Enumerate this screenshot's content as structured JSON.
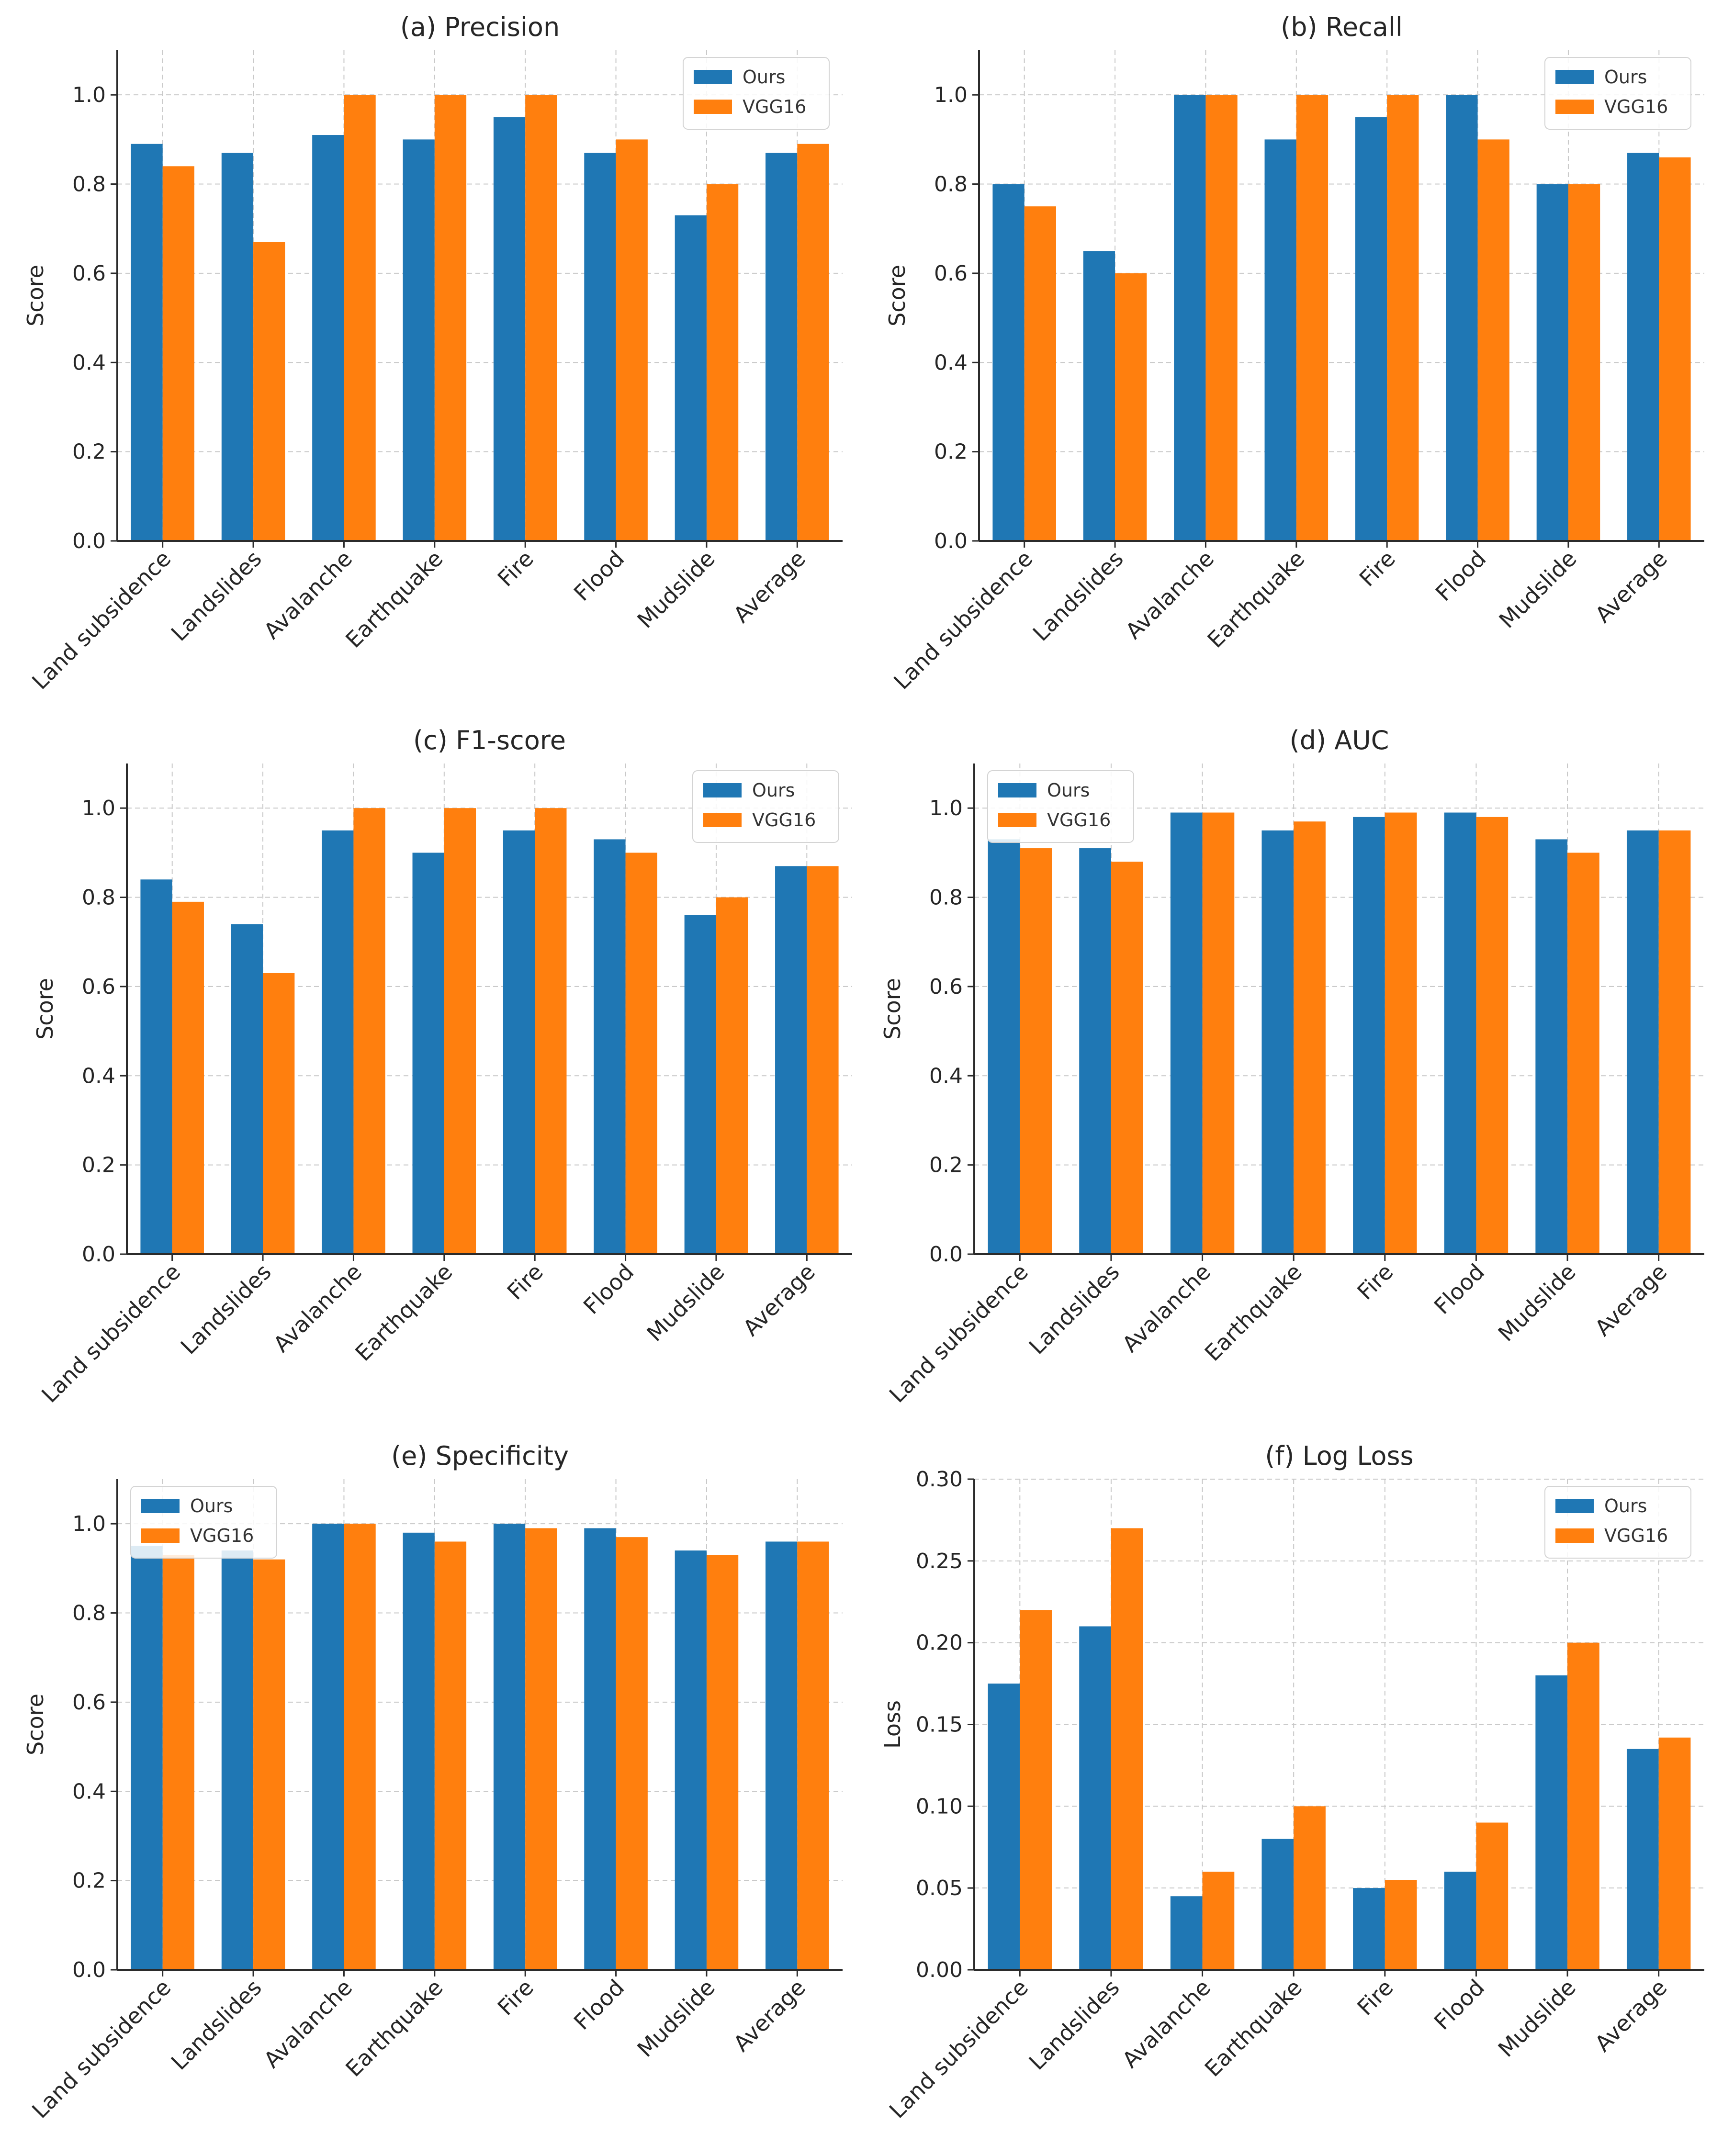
{
  "colors": {
    "ours": "#1f77b4",
    "vgg16": "#ff7f0e"
  },
  "chart_data": [
    {
      "type": "bar",
      "title": "(a) Precision",
      "ylabel": "Score",
      "ylim": [
        0,
        1.1
      ],
      "yticks": [
        "0.0",
        "0.2",
        "0.4",
        "0.6",
        "0.8",
        "1.0"
      ],
      "yticks_values": [
        0,
        0.2,
        0.4,
        0.6,
        0.8,
        1.0
      ],
      "legend_position": "top-right",
      "categories": [
        "Land subsidence",
        "Landslides",
        "Avalanche",
        "Earthquake",
        "Fire",
        "Flood",
        "Mudslide",
        "Average"
      ],
      "series": [
        {
          "name": "Ours",
          "values": [
            0.89,
            0.87,
            0.91,
            0.9,
            0.95,
            0.87,
            0.73,
            0.87
          ]
        },
        {
          "name": "VGG16",
          "values": [
            0.84,
            0.67,
            1.0,
            1.0,
            1.0,
            0.9,
            0.8,
            0.89
          ]
        }
      ]
    },
    {
      "type": "bar",
      "title": "(b) Recall",
      "ylabel": "Score",
      "ylim": [
        0,
        1.1
      ],
      "yticks": [
        "0.0",
        "0.2",
        "0.4",
        "0.6",
        "0.8",
        "1.0"
      ],
      "yticks_values": [
        0,
        0.2,
        0.4,
        0.6,
        0.8,
        1.0
      ],
      "legend_position": "top-right",
      "categories": [
        "Land subsidence",
        "Landslides",
        "Avalanche",
        "Earthquake",
        "Fire",
        "Flood",
        "Mudslide",
        "Average"
      ],
      "series": [
        {
          "name": "Ours",
          "values": [
            0.8,
            0.65,
            1.0,
            0.9,
            0.95,
            1.0,
            0.8,
            0.87
          ]
        },
        {
          "name": "VGG16",
          "values": [
            0.75,
            0.6,
            1.0,
            1.0,
            1.0,
            0.9,
            0.8,
            0.86
          ]
        }
      ]
    },
    {
      "type": "bar",
      "title": "(c) F1-score",
      "ylabel": "Score",
      "ylim": [
        0,
        1.1
      ],
      "yticks": [
        "0.0",
        "0.2",
        "0.4",
        "0.6",
        "0.8",
        "1.0"
      ],
      "yticks_values": [
        0,
        0.2,
        0.4,
        0.6,
        0.8,
        1.0
      ],
      "legend_position": "top-right",
      "categories": [
        "Land subsidence",
        "Landslides",
        "Avalanche",
        "Earthquake",
        "Fire",
        "Flood",
        "Mudslide",
        "Average"
      ],
      "series": [
        {
          "name": "Ours",
          "values": [
            0.84,
            0.74,
            0.95,
            0.9,
            0.95,
            0.93,
            0.76,
            0.87
          ]
        },
        {
          "name": "VGG16",
          "values": [
            0.79,
            0.63,
            1.0,
            1.0,
            1.0,
            0.9,
            0.8,
            0.87
          ]
        }
      ]
    },
    {
      "type": "bar",
      "title": "(d) AUC",
      "ylabel": "Score",
      "ylim": [
        0,
        1.1
      ],
      "yticks": [
        "0.0",
        "0.2",
        "0.4",
        "0.6",
        "0.8",
        "1.0"
      ],
      "yticks_values": [
        0,
        0.2,
        0.4,
        0.6,
        0.8,
        1.0
      ],
      "legend_position": "top-left",
      "categories": [
        "Land subsidence",
        "Landslides",
        "Avalanche",
        "Earthquake",
        "Fire",
        "Flood",
        "Mudslide",
        "Average"
      ],
      "series": [
        {
          "name": "Ours",
          "values": [
            0.93,
            0.91,
            0.99,
            0.95,
            0.98,
            0.99,
            0.93,
            0.95
          ]
        },
        {
          "name": "VGG16",
          "values": [
            0.91,
            0.88,
            0.99,
            0.97,
            0.99,
            0.98,
            0.9,
            0.95
          ]
        }
      ]
    },
    {
      "type": "bar",
      "title": "(e) Specificity",
      "ylabel": "Score",
      "ylim": [
        0,
        1.1
      ],
      "yticks": [
        "0.0",
        "0.2",
        "0.4",
        "0.6",
        "0.8",
        "1.0"
      ],
      "yticks_values": [
        0,
        0.2,
        0.4,
        0.6,
        0.8,
        1.0
      ],
      "legend_position": "top-left",
      "categories": [
        "Land subsidence",
        "Landslides",
        "Avalanche",
        "Earthquake",
        "Fire",
        "Flood",
        "Mudslide",
        "Average"
      ],
      "series": [
        {
          "name": "Ours",
          "values": [
            0.95,
            0.94,
            1.0,
            0.98,
            1.0,
            0.99,
            0.94,
            0.96
          ]
        },
        {
          "name": "VGG16",
          "values": [
            0.93,
            0.92,
            1.0,
            0.96,
            0.99,
            0.97,
            0.93,
            0.96
          ]
        }
      ]
    },
    {
      "type": "bar",
      "title": "(f) Log Loss",
      "ylabel": "Loss",
      "ylim": [
        0,
        0.3
      ],
      "yticks": [
        "0.00",
        "0.05",
        "0.10",
        "0.15",
        "0.20",
        "0.25",
        "0.30"
      ],
      "yticks_values": [
        0,
        0.05,
        0.1,
        0.15,
        0.2,
        0.25,
        0.3
      ],
      "legend_position": "top-right",
      "categories": [
        "Land subsidence",
        "Landslides",
        "Avalanche",
        "Earthquake",
        "Fire",
        "Flood",
        "Mudslide",
        "Average"
      ],
      "series": [
        {
          "name": "Ours",
          "values": [
            0.175,
            0.21,
            0.045,
            0.08,
            0.05,
            0.06,
            0.18,
            0.135
          ]
        },
        {
          "name": "VGG16",
          "values": [
            0.22,
            0.27,
            0.06,
            0.1,
            0.055,
            0.09,
            0.2,
            0.142
          ]
        }
      ]
    }
  ]
}
